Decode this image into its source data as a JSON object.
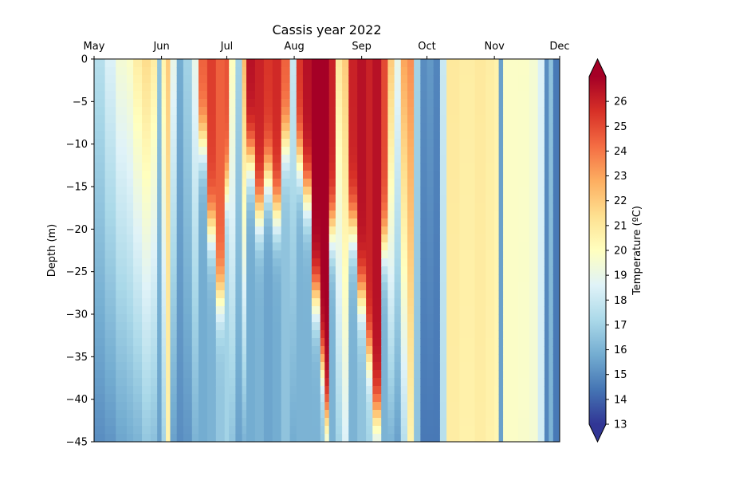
{
  "chart_data": {
    "type": "heatmap",
    "title": "Cassis year 2022",
    "xlabel": "",
    "ylabel": "Depth (m)",
    "x_ticks": [
      "May",
      "Jun",
      "Jul",
      "Aug",
      "Sep",
      "Oct",
      "Nov",
      "Dec"
    ],
    "x_tick_days": [
      0,
      31,
      61,
      92,
      123,
      153,
      184,
      214
    ],
    "xlim_days": [
      0,
      214
    ],
    "y_ticks": [
      0,
      -5,
      -10,
      -15,
      -20,
      -25,
      -30,
      -35,
      -40,
      -45
    ],
    "ylim": [
      -45,
      0
    ],
    "colorbar": {
      "label": "Temperature (ºC)",
      "vmin": 13,
      "vmax": 27,
      "ticks": [
        13,
        14,
        15,
        16,
        17,
        18,
        19,
        20,
        21,
        22,
        23,
        24,
        25,
        26
      ],
      "extend": "both",
      "colormap": "RdYlBu_r",
      "colors": [
        "#313695",
        "#4575b4",
        "#74add1",
        "#abd9e9",
        "#e0f3f8",
        "#ffffbf",
        "#fee090",
        "#fdae61",
        "#f46d43",
        "#d73027",
        "#a50026"
      ]
    },
    "profiles": [
      {
        "day": 0,
        "top": 17.5,
        "bottom": 15.0
      },
      {
        "day": 5,
        "top": 18.5,
        "bottom": 15.2
      },
      {
        "day": 10,
        "top": 19.5,
        "bottom": 15.6
      },
      {
        "day": 15,
        "top": 19.8,
        "bottom": 15.8
      },
      {
        "day": 18,
        "top": 20.8,
        "bottom": 16.0
      },
      {
        "day": 22,
        "top": 21.5,
        "bottom": 16.6
      },
      {
        "day": 26,
        "top": 20.8,
        "bottom": 16.4
      },
      {
        "day": 29,
        "top": 16.5,
        "bottom": 15.5
      },
      {
        "day": 31,
        "top": 20.5,
        "bottom": 17.0
      },
      {
        "day": 33,
        "top": 22.0,
        "bottom": 20.5
      },
      {
        "day": 35,
        "top": 19.0,
        "bottom": 15.5
      },
      {
        "day": 38,
        "top": 15.8,
        "bottom": 15.0
      },
      {
        "day": 41,
        "top": 17.0,
        "bottom": 15.2
      },
      {
        "day": 45,
        "top": 19.0,
        "bottom": 16.0
      },
      {
        "day": 48,
        "top": 24.5,
        "bottom": 15.8,
        "thermocline": -10
      },
      {
        "day": 52,
        "top": 25.3,
        "bottom": 16.0,
        "thermocline": -20
      },
      {
        "day": 56,
        "top": 24.5,
        "bottom": 16.6,
        "thermocline": -28
      },
      {
        "day": 60,
        "top": 24.8,
        "bottom": 17.0,
        "thermocline": -15
      },
      {
        "day": 62,
        "top": 20.0,
        "bottom": 16.5
      },
      {
        "day": 65,
        "top": 17.0,
        "bottom": 15.5
      },
      {
        "day": 68,
        "top": 22.5,
        "bottom": 16.0
      },
      {
        "day": 70,
        "top": 26.5,
        "bottom": 15.8,
        "thermocline": -12
      },
      {
        "day": 74,
        "top": 26.0,
        "bottom": 16.0,
        "thermocline": -18
      },
      {
        "day": 78,
        "top": 25.5,
        "bottom": 15.6,
        "thermocline": -14
      },
      {
        "day": 82,
        "top": 25.8,
        "bottom": 15.8,
        "thermocline": -18
      },
      {
        "day": 86,
        "top": 24.5,
        "bottom": 16.5,
        "thermocline": -10
      },
      {
        "day": 90,
        "top": 18.0,
        "bottom": 15.8
      },
      {
        "day": 93,
        "top": 25.5,
        "bottom": 16.0,
        "thermocline": -12
      },
      {
        "day": 96,
        "top": 26.5,
        "bottom": 16.0,
        "thermocline": -16
      },
      {
        "day": 100,
        "top": 27.0,
        "bottom": 16.0,
        "thermocline": -28
      },
      {
        "day": 104,
        "top": 27.0,
        "bottom": 16.5,
        "thermocline": -36
      },
      {
        "day": 106,
        "top": 27.0,
        "bottom": 17.5,
        "thermocline": -42
      },
      {
        "day": 108,
        "top": 26.0,
        "bottom": 16.0,
        "thermocline": -20
      },
      {
        "day": 111,
        "top": 21.0,
        "bottom": 17.0
      },
      {
        "day": 114,
        "top": 22.0,
        "bottom": 18.5
      },
      {
        "day": 117,
        "top": 26.0,
        "bottom": 16.0,
        "thermocline": -20
      },
      {
        "day": 121,
        "top": 26.5,
        "bottom": 16.5,
        "thermocline": -28
      },
      {
        "day": 125,
        "top": 26.0,
        "bottom": 17.0,
        "thermocline": -35
      },
      {
        "day": 128,
        "top": 26.5,
        "bottom": 17.0,
        "thermocline": -42
      },
      {
        "day": 132,
        "top": 25.0,
        "bottom": 16.0,
        "thermocline": -22
      },
      {
        "day": 135,
        "top": 22.0,
        "bottom": 16.0
      },
      {
        "day": 138,
        "top": 19.0,
        "bottom": 15.5
      },
      {
        "day": 141,
        "top": 23.0,
        "bottom": 17.5
      },
      {
        "day": 144,
        "top": 23.5,
        "bottom": 20.5
      },
      {
        "day": 147,
        "top": 17.0,
        "bottom": 16.5
      },
      {
        "day": 150,
        "top": 15.0,
        "bottom": 14.5
      },
      {
        "day": 153,
        "top": 15.3,
        "bottom": 14.5
      },
      {
        "day": 156,
        "top": 14.8,
        "bottom": 14.5
      },
      {
        "day": 159,
        "top": 18.0,
        "bottom": 17.5
      },
      {
        "day": 162,
        "top": 21.0,
        "bottom": 20.8
      },
      {
        "day": 168,
        "top": 20.8,
        "bottom": 20.6
      },
      {
        "day": 175,
        "top": 21.0,
        "bottom": 20.8
      },
      {
        "day": 180,
        "top": 20.8,
        "bottom": 20.6
      },
      {
        "day": 184,
        "top": 20.6,
        "bottom": 20.4
      },
      {
        "day": 186,
        "top": 15.5,
        "bottom": 15.5
      },
      {
        "day": 188,
        "top": 19.8,
        "bottom": 19.8
      },
      {
        "day": 195,
        "top": 19.8,
        "bottom": 19.7
      },
      {
        "day": 200,
        "top": 19.5,
        "bottom": 19.5
      },
      {
        "day": 204,
        "top": 18.5,
        "bottom": 18.2
      },
      {
        "day": 207,
        "top": 15.0,
        "bottom": 14.8
      },
      {
        "day": 209,
        "top": 16.5,
        "bottom": 16.0
      },
      {
        "day": 211,
        "top": 14.5,
        "bottom": 14.5
      },
      {
        "day": 214,
        "top": 17.0,
        "bottom": 17.0
      }
    ]
  }
}
